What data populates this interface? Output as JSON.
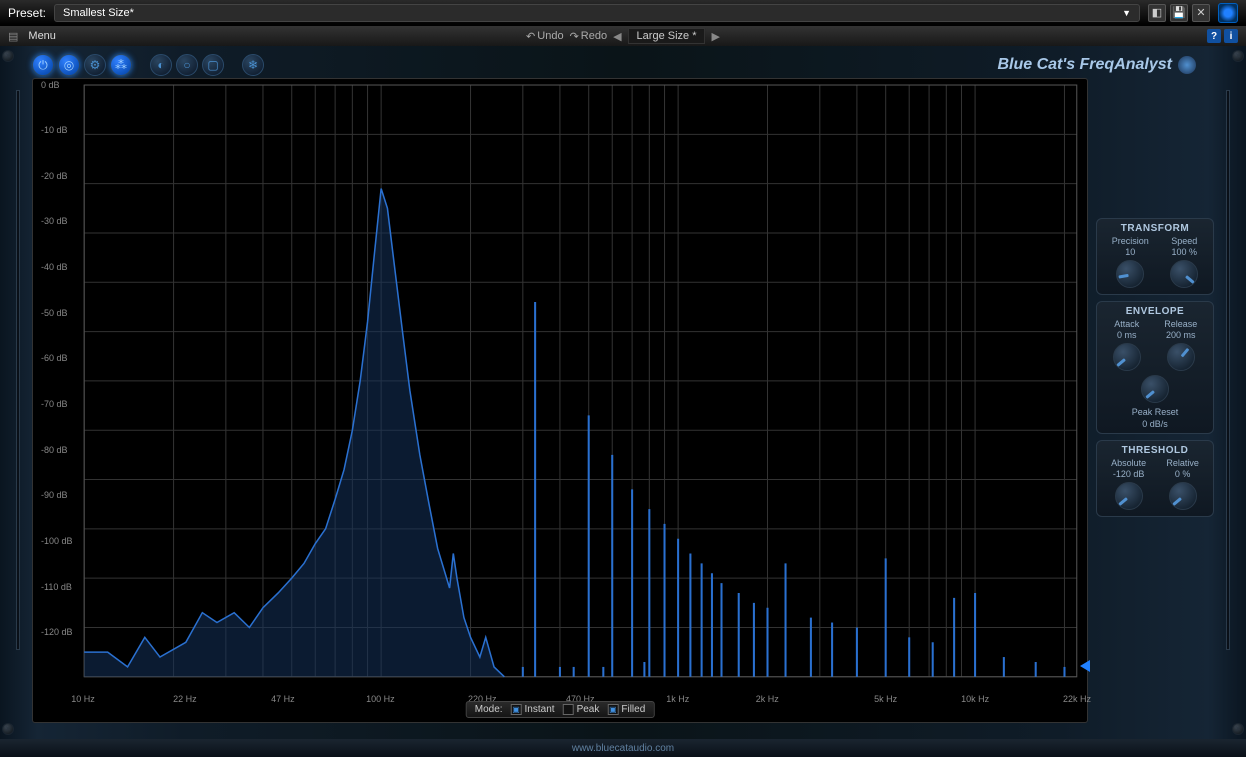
{
  "preset": {
    "label": "Preset:",
    "value": "Smallest Size*"
  },
  "menu": {
    "menu_label": "Menu",
    "undo_label": "Undo",
    "redo_label": "Redo",
    "size_label": "Large Size *"
  },
  "title": "Blue Cat's FreqAnalyst",
  "chart": {
    "type": "spectrum",
    "background_color": "#000000",
    "grid_color": "#333333",
    "curve_color": "#2a70d0",
    "fill_color": "rgba(20,50,90,0.55)",
    "y_axis": {
      "min": -120,
      "max": 0,
      "step": 10,
      "unit": "dB",
      "labels": [
        "0 dB",
        "-10 dB",
        "-20 dB",
        "-30 dB",
        "-40 dB",
        "-50 dB",
        "-60 dB",
        "-70 dB",
        "-80 dB",
        "-90 dB",
        "-100 dB",
        "-110 dB",
        "-120 dB"
      ]
    },
    "x_axis": {
      "scale": "log",
      "min": 10,
      "max": 22000,
      "labels": [
        "10 Hz",
        "22 Hz",
        "47 Hz",
        "100 Hz",
        "220 Hz",
        "470 Hz",
        "1k Hz",
        "2k Hz",
        "5k Hz",
        "10k Hz",
        "22k Hz"
      ],
      "positions": [
        10,
        22,
        47,
        100,
        220,
        470,
        1000,
        2000,
        5000,
        10000,
        22000
      ]
    },
    "curve_points": [
      [
        10,
        -115
      ],
      [
        12,
        -115
      ],
      [
        14,
        -118
      ],
      [
        16,
        -112
      ],
      [
        18,
        -116
      ],
      [
        22,
        -113
      ],
      [
        25,
        -107
      ],
      [
        28,
        -109
      ],
      [
        32,
        -107
      ],
      [
        36,
        -110
      ],
      [
        40,
        -106
      ],
      [
        45,
        -103
      ],
      [
        50,
        -100
      ],
      [
        55,
        -97
      ],
      [
        60,
        -93
      ],
      [
        65,
        -90
      ],
      [
        70,
        -84
      ],
      [
        75,
        -78
      ],
      [
        80,
        -70
      ],
      [
        85,
        -60
      ],
      [
        90,
        -48
      ],
      [
        95,
        -34
      ],
      [
        100,
        -21
      ],
      [
        105,
        -25
      ],
      [
        110,
        -35
      ],
      [
        118,
        -50
      ],
      [
        125,
        -62
      ],
      [
        135,
        -75
      ],
      [
        145,
        -85
      ],
      [
        155,
        -94
      ],
      [
        170,
        -102
      ],
      [
        175,
        -95
      ],
      [
        180,
        -100
      ],
      [
        190,
        -108
      ],
      [
        200,
        -112
      ],
      [
        215,
        -116
      ],
      [
        225,
        -112
      ],
      [
        240,
        -118
      ],
      [
        260,
        -120
      ]
    ],
    "harmonic_spikes": [
      [
        300,
        -118
      ],
      [
        330,
        -44
      ],
      [
        400,
        -118
      ],
      [
        445,
        -118
      ],
      [
        500,
        -67
      ],
      [
        560,
        -118
      ],
      [
        600,
        -75
      ],
      [
        700,
        -82
      ],
      [
        770,
        -117
      ],
      [
        800,
        -86
      ],
      [
        900,
        -89
      ],
      [
        1000,
        -92
      ],
      [
        1100,
        -95
      ],
      [
        1200,
        -97
      ],
      [
        1300,
        -99
      ],
      [
        1400,
        -101
      ],
      [
        1600,
        -103
      ],
      [
        1800,
        -105
      ],
      [
        2000,
        -106
      ],
      [
        2300,
        -97
      ],
      [
        2800,
        -108
      ],
      [
        3300,
        -109
      ],
      [
        4000,
        -110
      ],
      [
        5000,
        -96
      ],
      [
        6000,
        -112
      ],
      [
        7200,
        -113
      ],
      [
        8500,
        -104
      ],
      [
        10000,
        -103
      ],
      [
        12500,
        -116
      ],
      [
        16000,
        -117
      ],
      [
        20000,
        -118
      ]
    ],
    "marker_db": -118
  },
  "mode": {
    "label": "Mode:",
    "instant": {
      "label": "Instant",
      "checked": true
    },
    "peak": {
      "label": "Peak",
      "checked": false
    },
    "filled": {
      "label": "Filled",
      "checked": true
    }
  },
  "panels": {
    "transform": {
      "title": "TRANSFORM",
      "precision": {
        "label": "Precision",
        "value": "10",
        "rotation": -100
      },
      "speed": {
        "label": "Speed",
        "value": "100 %",
        "rotation": 130
      }
    },
    "envelope": {
      "title": "ENVELOPE",
      "attack": {
        "label": "Attack",
        "value": "0 ms",
        "rotation": -130
      },
      "release": {
        "label": "Release",
        "value": "200 ms",
        "rotation": 40
      },
      "peak_reset": {
        "label": "Peak Reset",
        "value": "0 dB/s",
        "rotation": -130
      }
    },
    "threshold": {
      "title": "THRESHOLD",
      "absolute": {
        "label": "Absolute",
        "value": "-120 dB",
        "rotation": -130
      },
      "relative": {
        "label": "Relative",
        "value": "0 %",
        "rotation": -130
      }
    }
  },
  "footer": {
    "url": "www.bluecataudio.com"
  }
}
